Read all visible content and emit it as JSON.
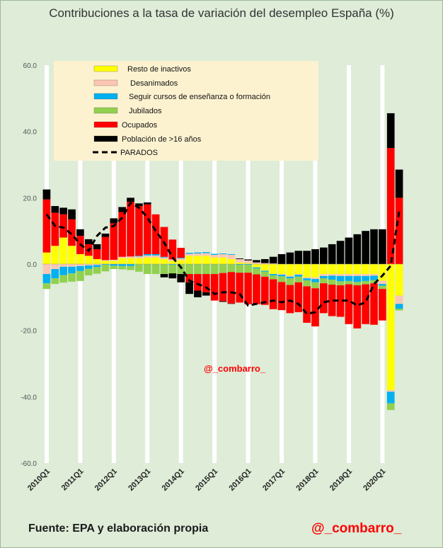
{
  "title": "Contribuciones a la tasa de variación del desempleo España (%)",
  "source": "Fuente: EPA y elaboración propia",
  "credit": "@_combarro_",
  "chart_data": {
    "type": "bar",
    "stacked": true,
    "ylim": [
      -60,
      60
    ],
    "yticks": [
      60,
      40,
      20,
      0,
      -20,
      -40,
      -60
    ],
    "ytick_labels": [
      "60.0",
      "40.0",
      "20.0",
      "0.0",
      "-20.0",
      "-40.0",
      "-60.0"
    ],
    "grid": "white vertical band at every Q1",
    "legend_position": "top-left",
    "year_labels": [
      "2010Q1",
      "2011Q1",
      "2012Q1",
      "2013Q1",
      "2014Q1",
      "2015Q1",
      "2016Q1",
      "2017Q1",
      "2018Q1",
      "2019Q1",
      "2020Q1"
    ],
    "categories": [
      "2010Q1",
      "2010Q2",
      "2010Q3",
      "2010Q4",
      "2011Q1",
      "2011Q2",
      "2011Q3",
      "2011Q4",
      "2012Q1",
      "2012Q2",
      "2012Q3",
      "2012Q4",
      "2013Q1",
      "2013Q2",
      "2013Q3",
      "2013Q4",
      "2014Q1",
      "2014Q2",
      "2014Q3",
      "2014Q4",
      "2015Q1",
      "2015Q2",
      "2015Q3",
      "2015Q4",
      "2016Q1",
      "2016Q2",
      "2016Q3",
      "2016Q4",
      "2017Q1",
      "2017Q2",
      "2017Q3",
      "2017Q4",
      "2018Q1",
      "2018Q2",
      "2018Q3",
      "2018Q4",
      "2019Q1",
      "2019Q2",
      "2019Q3",
      "2019Q4",
      "2020Q1",
      "2020Q2",
      "2020Q3"
    ],
    "series": [
      {
        "name": "Resto de inactivos",
        "color": "#ffff00",
        "values": [
          3.5,
          5.5,
          8,
          5.5,
          3,
          2.5,
          1.5,
          1,
          1,
          1.8,
          1.8,
          1.8,
          2,
          2,
          1.5,
          1,
          1.2,
          2.5,
          2.5,
          2.5,
          2,
          2,
          1.5,
          0.5,
          0.3,
          -1,
          -2,
          -3,
          -3,
          -3.5,
          -3,
          -4,
          -4,
          -3,
          -3,
          -3,
          -3,
          -3,
          -3,
          -3,
          -5,
          -38,
          -9.5
        ]
      },
      {
        "name": "Desanimados",
        "color": "#fcc6b4",
        "values": [
          -3,
          -1.5,
          -0.8,
          -0.8,
          -0.6,
          -0.4,
          -0.3,
          0.2,
          0.3,
          0.4,
          0.5,
          0.5,
          0.6,
          0.6,
          0.5,
          0.4,
          0.5,
          0.6,
          0.7,
          0.8,
          0.8,
          1.0,
          1.3,
          1.0,
          0.8,
          0.5,
          0.3,
          0.2,
          -0.2,
          -0.3,
          -0.2,
          -0.3,
          -0.5,
          -0.6,
          -0.5,
          -0.6,
          -0.6,
          -0.6,
          -0.6,
          -0.5,
          -1,
          -0.5,
          -2.5
        ]
      },
      {
        "name": "Seguir cursos de enseñanza o formación",
        "color": "#00b0f0",
        "values": [
          -2.8,
          -2.8,
          -2.5,
          -2,
          -1.5,
          -1,
          -0.6,
          -0.2,
          -0.5,
          -0.6,
          -0.6,
          0.2,
          0.4,
          0.4,
          0.2,
          -0.2,
          0.2,
          0.3,
          0.3,
          0.3,
          0.3,
          0.2,
          0.2,
          -0.2,
          -0.2,
          -0.3,
          -0.3,
          -0.4,
          -0.5,
          -0.5,
          -0.6,
          -0.6,
          -1,
          -0.7,
          -1.2,
          -1.6,
          -1.5,
          -1.8,
          -1.5,
          -1.3,
          -0.5,
          -3.5,
          -1.5
        ]
      },
      {
        "name": "Jubilados",
        "color": "#92d050",
        "values": [
          -1.7,
          -1.7,
          -2.3,
          -2.5,
          -3,
          -2,
          -2,
          -2,
          -1,
          -1,
          -1.2,
          -2.3,
          -3,
          -3,
          -3,
          -2.6,
          -3,
          -3,
          -3,
          -3,
          -3,
          -2.7,
          -2.4,
          -2.4,
          -2.4,
          -1.8,
          -1.5,
          -1.2,
          -1.7,
          -2,
          -1.7,
          -1.8,
          -1.8,
          -1.5,
          -1.5,
          -1.2,
          -1,
          -1,
          -1,
          -1,
          -1,
          -2,
          -0.5
        ]
      },
      {
        "name": "Ocupados",
        "color": "#ff0000",
        "values": [
          16,
          10,
          7,
          8,
          5.5,
          3.5,
          3,
          7,
          11,
          13.5,
          16.5,
          15,
          15,
          12,
          9,
          6,
          3,
          -2.5,
          -5,
          -5.5,
          -8,
          -8.5,
          -9.5,
          -9,
          -9.5,
          -9,
          -8.5,
          -9,
          -8.5,
          -8.5,
          -9,
          -11,
          -11.5,
          -9,
          -9.5,
          -9.5,
          -12,
          -13,
          -12,
          -12.5,
          -9.5,
          35,
          20
        ]
      },
      {
        "name": "Población de >16 años",
        "color": "#000000",
        "values": [
          3,
          2,
          2,
          3,
          2,
          1.5,
          1.5,
          1,
          1.5,
          1.5,
          1.2,
          0.8,
          0.6,
          0,
          -1,
          -1.5,
          -2.5,
          -3.5,
          -2,
          -1,
          0,
          -0.2,
          -0.1,
          0.2,
          0.3,
          0.7,
          1.2,
          2,
          3,
          3.5,
          4,
          4,
          4.5,
          5,
          6,
          7,
          8,
          9,
          10,
          10.5,
          10.5,
          10.5,
          8.5
        ]
      },
      {
        "name": "PARADOS",
        "color": "#000000",
        "line": true,
        "values": [
          15,
          11.5,
          11,
          9,
          6,
          4,
          8.5,
          11,
          11.5,
          14,
          18.5,
          17,
          14,
          10,
          6.5,
          2,
          -1,
          -5,
          -6,
          -7,
          -9,
          -8.5,
          -8.5,
          -9,
          -12.5,
          -12,
          -11.5,
          -11,
          -11.5,
          -11,
          -12,
          -15,
          -14.5,
          -11.5,
          -11,
          -11,
          -11,
          -12.5,
          -11.5,
          -6,
          -3.5,
          -0.5,
          16
        ]
      }
    ]
  }
}
